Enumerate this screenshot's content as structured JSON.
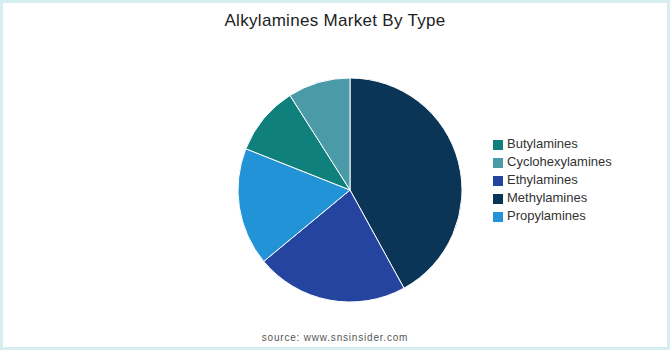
{
  "chart_data": {
    "type": "pie",
    "title": "Alkylamines Market By Type",
    "categories": [
      "Methylamines",
      "Ethylamines",
      "Propylamines",
      "Butylamines",
      "Cyclohexylamines"
    ],
    "values": [
      42,
      22,
      17,
      10,
      9
    ],
    "colors": [
      "#0b3556",
      "#2444a0",
      "#2293d6",
      "#10807d",
      "#4a9aa8"
    ],
    "legend": "right",
    "source": "source: www.snsinsider.com"
  }
}
